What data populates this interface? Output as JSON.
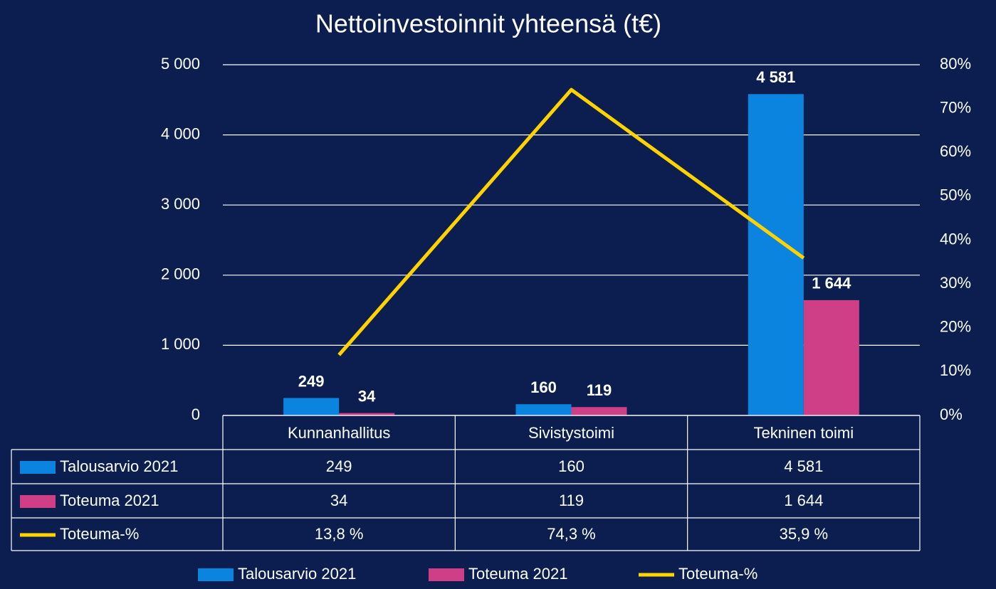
{
  "chart_data": {
    "type": "bar",
    "title": "Nettoinvestoinnit yhteensä (t€)",
    "categories": [
      "Kunnanhallitus",
      "Sivistystoimi",
      "Tekninen toimi"
    ],
    "series": [
      {
        "name": "Talousarvio 2021",
        "color": "#0b84df",
        "values": [
          249,
          160,
          4581
        ],
        "value_labels": [
          "249",
          "160",
          "4 581"
        ]
      },
      {
        "name": "Toteuma 2021",
        "color": "#cf3f88",
        "values": [
          34,
          119,
          1644
        ],
        "value_labels": [
          "34",
          "119",
          "1 644"
        ]
      },
      {
        "name": "Toteuma-%",
        "color": "#ffd200",
        "type": "line",
        "axis": "y2",
        "values": [
          13.8,
          74.3,
          35.9
        ],
        "value_labels": [
          "13,8 %",
          "74,3 %",
          "35,9 %"
        ]
      }
    ],
    "ylim": [
      0,
      5000
    ],
    "yticks": [
      {
        "value": 0,
        "label": "0"
      },
      {
        "value": 1000,
        "label": "1 000"
      },
      {
        "value": 2000,
        "label": "2 000"
      },
      {
        "value": 3000,
        "label": "3 000"
      },
      {
        "value": 4000,
        "label": "4 000"
      },
      {
        "value": 5000,
        "label": "5 000"
      }
    ],
    "y2lim": [
      0,
      80
    ],
    "y2ticks": [
      {
        "value": 0,
        "label": "0%"
      },
      {
        "value": 10,
        "label": "10%"
      },
      {
        "value": 20,
        "label": "20%"
      },
      {
        "value": 30,
        "label": "30%"
      },
      {
        "value": 40,
        "label": "40%"
      },
      {
        "value": 50,
        "label": "50%"
      },
      {
        "value": 60,
        "label": "60%"
      },
      {
        "value": 70,
        "label": "70%"
      },
      {
        "value": 80,
        "label": "80%"
      }
    ],
    "grid": true,
    "legend": "bottom",
    "data_table": true
  }
}
